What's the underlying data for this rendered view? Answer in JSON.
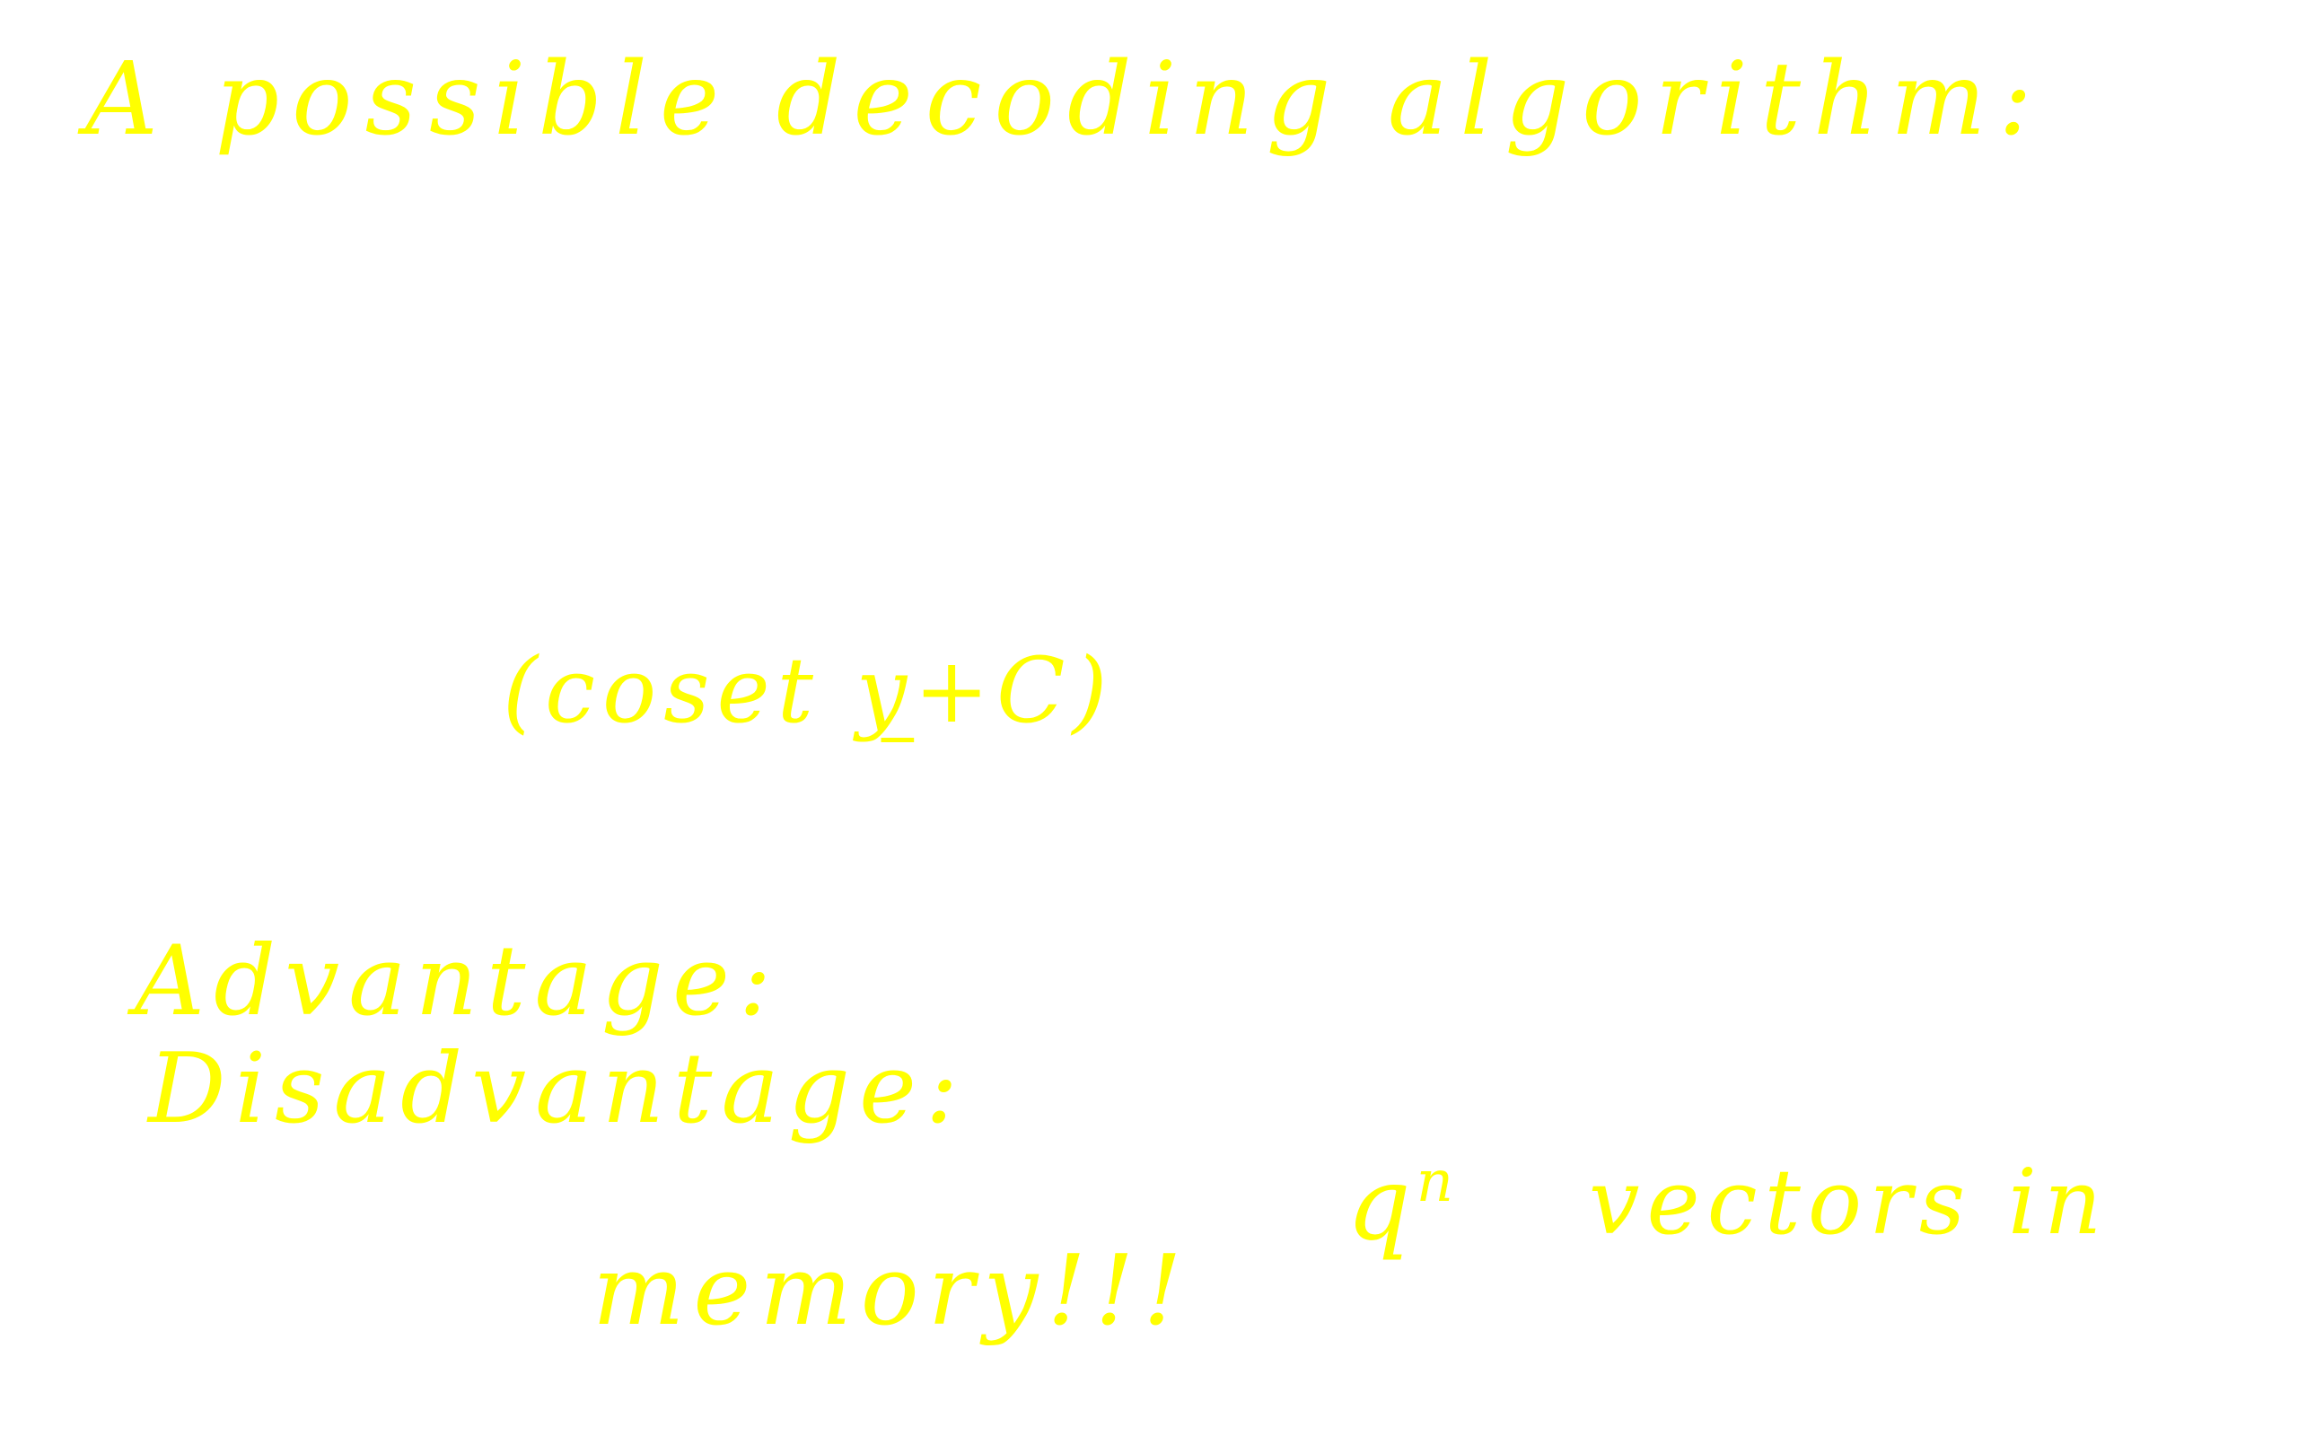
{
  "notes": {
    "title": "A possible decoding algorithm:",
    "coset_open": "(coset ",
    "coset_y": "y",
    "coset_close": "+C)",
    "advantage": "Advantage:",
    "disadvantage": "Disadvantage:",
    "q": "q",
    "n": "n",
    "vectors_in": "vectors in",
    "memory": "memory!!!"
  },
  "colors": {
    "ink": "#ffff00",
    "background": "#ffffff"
  }
}
